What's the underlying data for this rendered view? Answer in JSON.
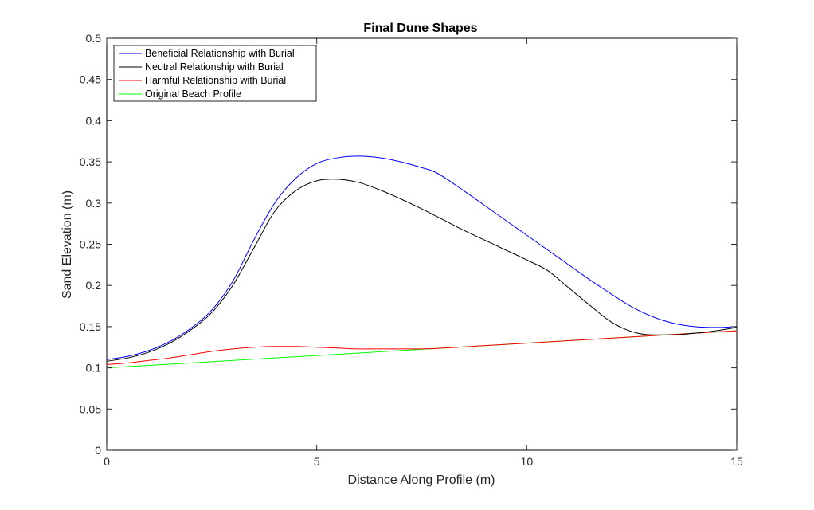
{
  "chart_data": {
    "type": "line",
    "title": "Final Dune Shapes",
    "xlabel": "Distance Along Profile (m)",
    "ylabel": "Sand Elevation (m)",
    "xlim": [
      0,
      15
    ],
    "ylim": [
      0,
      0.5
    ],
    "xticks": [
      0,
      5,
      10,
      15
    ],
    "yticks": [
      0,
      0.05,
      0.1,
      0.15,
      0.2,
      0.25,
      0.3,
      0.35,
      0.4,
      0.45,
      0.5
    ],
    "xtick_labels": [
      "0",
      "5",
      "10",
      "15"
    ],
    "ytick_labels": [
      "0",
      "0.05",
      "0.1",
      "0.15",
      "0.2",
      "0.25",
      "0.3",
      "0.35",
      "0.4",
      "0.45",
      "0.5"
    ],
    "grid": false,
    "legend_position": "top-left",
    "series": [
      {
        "name": "Beneficial Relationship with Burial",
        "color": "#0000ff",
        "x": [
          0,
          0.5,
          1,
          1.5,
          2,
          2.5,
          3,
          3.5,
          4,
          4.5,
          5,
          5.5,
          6,
          6.5,
          7,
          7.5,
          7.8,
          8.5,
          9,
          9.5,
          10,
          10.5,
          11,
          11.5,
          12,
          12.5,
          13,
          13.5,
          14,
          14.5,
          15
        ],
        "y": [
          0.11,
          0.114,
          0.121,
          0.132,
          0.148,
          0.17,
          0.205,
          0.255,
          0.3,
          0.33,
          0.348,
          0.355,
          0.357,
          0.355,
          0.35,
          0.343,
          0.338,
          0.315,
          0.297,
          0.279,
          0.261,
          0.243,
          0.225,
          0.207,
          0.19,
          0.174,
          0.162,
          0.154,
          0.15,
          0.149,
          0.15
        ]
      },
      {
        "name": "Neutral Relationship with Burial",
        "color": "#000000",
        "x": [
          0,
          0.5,
          1,
          1.5,
          2,
          2.5,
          3,
          3.5,
          4,
          4.5,
          5,
          5.4,
          6,
          6.5,
          7,
          7.5,
          8,
          8.5,
          9,
          9.5,
          10,
          10.5,
          11,
          11.5,
          12,
          12.5,
          13,
          13.5,
          14,
          14.5,
          15
        ],
        "y": [
          0.108,
          0.112,
          0.119,
          0.13,
          0.146,
          0.167,
          0.2,
          0.245,
          0.29,
          0.315,
          0.327,
          0.329,
          0.325,
          0.316,
          0.305,
          0.293,
          0.28,
          0.267,
          0.255,
          0.243,
          0.231,
          0.218,
          0.197,
          0.176,
          0.156,
          0.144,
          0.14,
          0.14,
          0.142,
          0.145,
          0.149
        ]
      },
      {
        "name": "Harmful Relationship with Burial",
        "color": "#ff0000",
        "x": [
          0,
          0.5,
          1,
          1.5,
          2,
          2.5,
          3,
          3.5,
          4,
          4.5,
          5,
          5.5,
          6,
          6.5,
          7,
          7.5,
          8,
          9,
          10,
          11,
          12,
          13,
          14,
          15
        ],
        "y": [
          0.104,
          0.106,
          0.109,
          0.112,
          0.116,
          0.12,
          0.123,
          0.125,
          0.126,
          0.126,
          0.125,
          0.124,
          0.123,
          0.123,
          0.123,
          0.123,
          0.124,
          0.127,
          0.13,
          0.133,
          0.136,
          0.139,
          0.142,
          0.145
        ]
      },
      {
        "name": "Original Beach Profile",
        "color": "#00ff00",
        "x": [
          0,
          15
        ],
        "y": [
          0.1,
          0.145
        ]
      }
    ]
  }
}
